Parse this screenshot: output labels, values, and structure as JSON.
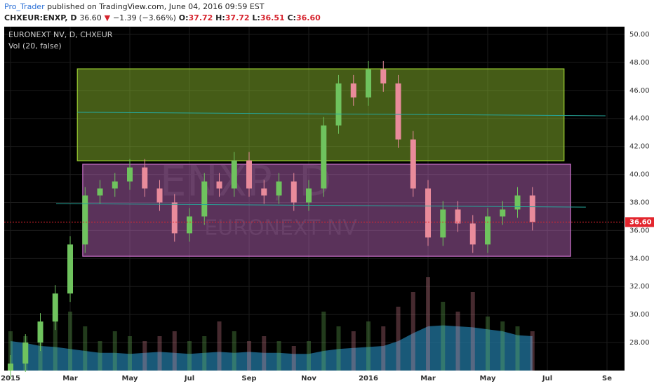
{
  "header": {
    "author": "Pro_Trader",
    "published": "published on TradingView.com, June 04, 2016 09:59 EST",
    "symbol": "CHXEUR:ENXP, D",
    "price": "36.60",
    "arrow": "▼",
    "change": "−1.39 (−3.66%)",
    "ohlc": [
      {
        "label": "O:",
        "value": "37.72"
      },
      {
        "label": "H:",
        "value": "37.72"
      },
      {
        "label": "L:",
        "value": "36.51"
      },
      {
        "label": "C:",
        "value": "36.60"
      }
    ]
  },
  "chart_data": {
    "type": "candlestick",
    "legend": [
      "EURONEXT NV, D, CHXEUR",
      "Vol (20, false)"
    ],
    "watermark": [
      "ENXP, D",
      "EURONEXT NV"
    ],
    "x": [
      0,
      0.5,
      1,
      1.5,
      2,
      2.5,
      3,
      3.5,
      4,
      4.5,
      5,
      5.5,
      6,
      6.5,
      7,
      7.5,
      8,
      8.5,
      9,
      9.5,
      10,
      10.5,
      11,
      11.5,
      12,
      12.5,
      13,
      13.5,
      14,
      14.5,
      15,
      15.5,
      16,
      16.5,
      17,
      17.5
    ],
    "open": [
      26.0,
      26.5,
      28.0,
      29.5,
      31.5,
      35.0,
      38.5,
      39.0,
      39.5,
      40.5,
      39.0,
      38.0,
      35.8,
      37.0,
      39.5,
      39.0,
      41.0,
      39.0,
      38.5,
      39.5,
      38.0,
      39.0,
      43.5,
      46.5,
      45.5,
      47.5,
      46.5,
      42.5,
      39.0,
      35.5,
      37.5,
      36.5,
      35.0,
      37.0,
      37.5,
      38.5
    ],
    "high": [
      27.1,
      28.6,
      30.1,
      32.1,
      35.6,
      39.1,
      39.6,
      40.1,
      41.1,
      41.1,
      39.6,
      38.6,
      37.6,
      40.1,
      40.1,
      41.6,
      41.6,
      39.6,
      40.1,
      40.1,
      39.6,
      44.1,
      47.1,
      47.1,
      48.1,
      48.1,
      47.1,
      43.1,
      39.6,
      38.1,
      38.1,
      37.1,
      37.6,
      38.1,
      39.1,
      39.1
    ],
    "low": [
      25.4,
      25.9,
      27.4,
      28.9,
      30.9,
      34.4,
      37.9,
      38.4,
      38.9,
      38.4,
      37.4,
      35.2,
      35.2,
      36.4,
      38.4,
      38.4,
      38.4,
      37.9,
      37.9,
      37.4,
      37.4,
      38.4,
      42.9,
      44.9,
      44.9,
      45.9,
      41.9,
      38.4,
      34.9,
      34.9,
      35.9,
      34.4,
      34.4,
      36.4,
      36.9,
      36.0
    ],
    "close": [
      26.5,
      28.0,
      29.5,
      31.5,
      35.0,
      38.5,
      39.0,
      39.5,
      40.5,
      39.0,
      38.0,
      35.8,
      37.0,
      39.5,
      39.0,
      41.0,
      39.0,
      38.5,
      39.5,
      38.0,
      39.0,
      43.5,
      46.5,
      45.5,
      47.5,
      46.5,
      42.5,
      39.0,
      35.5,
      37.5,
      36.5,
      35.0,
      37.0,
      37.5,
      38.5,
      36.6
    ],
    "up_color": "#6fc35e",
    "down_color": "#e98b9b",
    "volume": [
      40,
      35,
      45,
      50,
      60,
      45,
      30,
      40,
      35,
      30,
      35,
      40,
      30,
      35,
      50,
      40,
      30,
      35,
      30,
      25,
      30,
      60,
      45,
      40,
      50,
      45,
      65,
      80,
      95,
      70,
      60,
      80,
      55,
      50,
      45,
      40
    ],
    "volume_ma": [
      30,
      28,
      25,
      24,
      22,
      20,
      18,
      18,
      17,
      18,
      19,
      18,
      17,
      18,
      19,
      18,
      19,
      18,
      18,
      17,
      17,
      20,
      22,
      23,
      24,
      25,
      30,
      38,
      45,
      46,
      45,
      44,
      42,
      40,
      36,
      35
    ],
    "vlim": [
      0,
      100
    ],
    "volume_color": "#1f6f96",
    "boxes": [
      {
        "x": [
          2.24,
          18.56
        ],
        "y": [
          40.98,
          47.54
        ],
        "color": "#9acd32"
      },
      {
        "x": [
          2.42,
          18.78
        ],
        "y": [
          34.16,
          40.73
        ],
        "color": "#c86ec8"
      }
    ],
    "lines": [
      {
        "x": [
          2.24,
          19.95
        ],
        "y": [
          44.44,
          44.19
        ],
        "color": "#26a69a"
      },
      {
        "x": [
          1.53,
          19.29
        ],
        "y": [
          37.92,
          37.67
        ],
        "color": "#26a69a"
      }
    ],
    "price_line": {
      "value": 36.6,
      "label": "36.60",
      "color": "#e3262e"
    },
    "xlim": [
      -0.212,
      20.588
    ],
    "ylim": [
      26.0,
      50.55
    ],
    "xticks": [
      {
        "value": 0,
        "label": "2015"
      },
      {
        "value": 2,
        "label": "Mar"
      },
      {
        "value": 4,
        "label": "May"
      },
      {
        "value": 6,
        "label": "Jul"
      },
      {
        "value": 8,
        "label": "Sep"
      },
      {
        "value": 10,
        "label": "Nov"
      },
      {
        "value": 12,
        "label": "2016"
      },
      {
        "value": 14,
        "label": "Mar"
      },
      {
        "value": 16,
        "label": "May"
      },
      {
        "value": 18,
        "label": "Jul"
      },
      {
        "value": 20,
        "label": "Se"
      }
    ],
    "yticks": [
      {
        "value": 28,
        "label": "28.00"
      },
      {
        "value": 30,
        "label": "30.00"
      },
      {
        "value": 32,
        "label": "32.00"
      },
      {
        "value": 34,
        "label": "34.00"
      },
      {
        "value": 36,
        "label": "36.00"
      },
      {
        "value": 38,
        "label": "38.00"
      },
      {
        "value": 40,
        "label": "40.00"
      },
      {
        "value": 42,
        "label": "42.00"
      },
      {
        "value": 44,
        "label": "44.00"
      },
      {
        "value": 46,
        "label": "46.00"
      },
      {
        "value": 48,
        "label": "48.00"
      },
      {
        "value": 50,
        "label": "50.00"
      }
    ],
    "grid": true
  }
}
